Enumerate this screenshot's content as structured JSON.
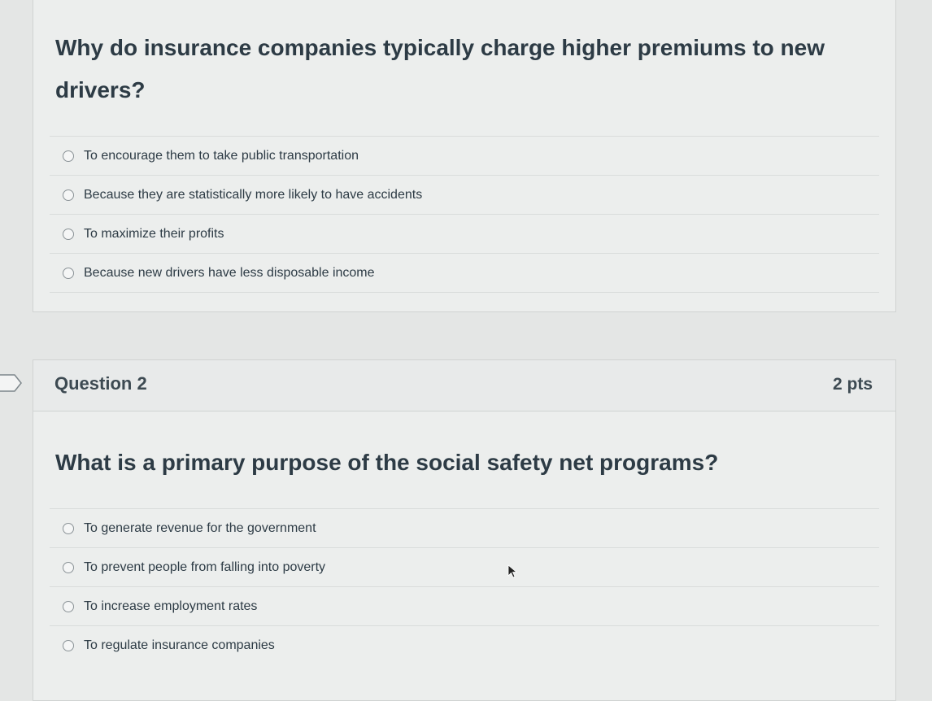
{
  "question1": {
    "text": "Why do insurance companies typically charge higher premiums to new drivers?",
    "answers": [
      "To encourage them to take public transportation",
      "Because they are statistically more likely to have accidents",
      "To maximize their profits",
      "Because new drivers have less disposable income"
    ]
  },
  "question2": {
    "title": "Question 2",
    "points": "2 pts",
    "text": "What is a primary purpose of the social safety net programs?",
    "answers": [
      "To generate revenue for the government",
      "To prevent people from falling into poverty",
      "To increase employment rates",
      "To regulate insurance companies"
    ]
  }
}
